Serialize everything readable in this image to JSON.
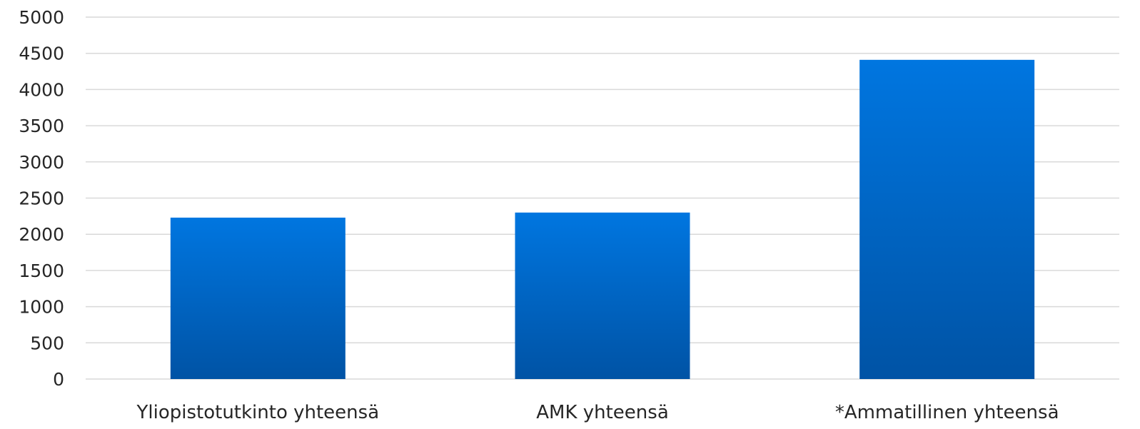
{
  "chart_data": {
    "type": "bar",
    "title": "",
    "xlabel": "",
    "ylabel": "",
    "categories": [
      "Yliopistotutkinto yhteensä",
      "AMK yhteensä",
      "*Ammatillinen yhteensä"
    ],
    "series": [
      {
        "values": [
          2230,
          2300,
          4410
        ]
      }
    ],
    "ylim": [
      0,
      5000
    ],
    "y_ticks": [
      0,
      500,
      1000,
      1500,
      2000,
      2500,
      3000,
      3500,
      4000,
      4500,
      5000
    ],
    "grid": true,
    "legend": "none",
    "colors": {
      "bar_top": "#0076e0",
      "bar_bottom": "#0053a5",
      "grid": "#d9d9d9",
      "text": "#262626"
    }
  }
}
